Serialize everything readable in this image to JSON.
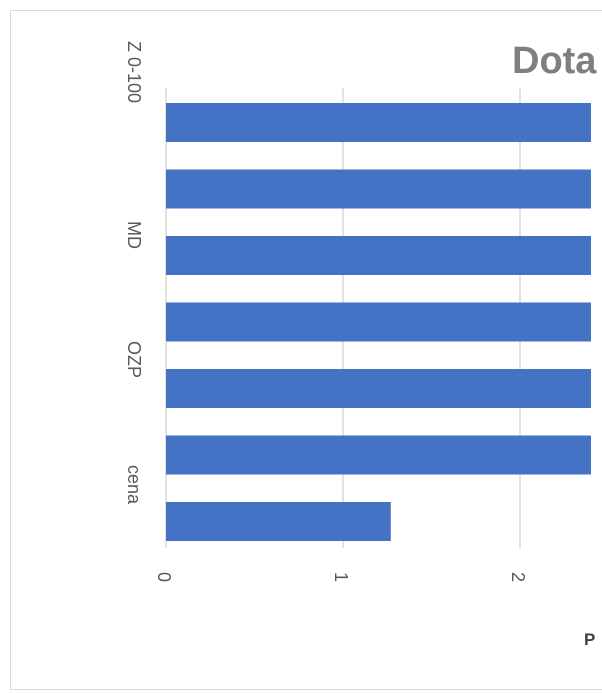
{
  "chart_data": {
    "type": "bar",
    "orientation": "horizontal",
    "title": "Dota",
    "xlabel": "P",
    "categories": [
      "Z 0-100",
      "",
      "MD",
      "",
      "OZP",
      "",
      "cena"
    ],
    "category_ticks": [
      "Z 0-100",
      "MD",
      "OZP",
      "cena"
    ],
    "values": [
      2.5,
      2.5,
      2.5,
      2.5,
      2.5,
      2.5,
      1.27
    ],
    "x_ticks": [
      "0",
      "1",
      "2"
    ],
    "xlim": [
      0,
      2.5
    ],
    "grid": true,
    "colors": {
      "bar": "#4472c4",
      "grid": "#d9d9d9",
      "tick_label": "#595959"
    }
  }
}
